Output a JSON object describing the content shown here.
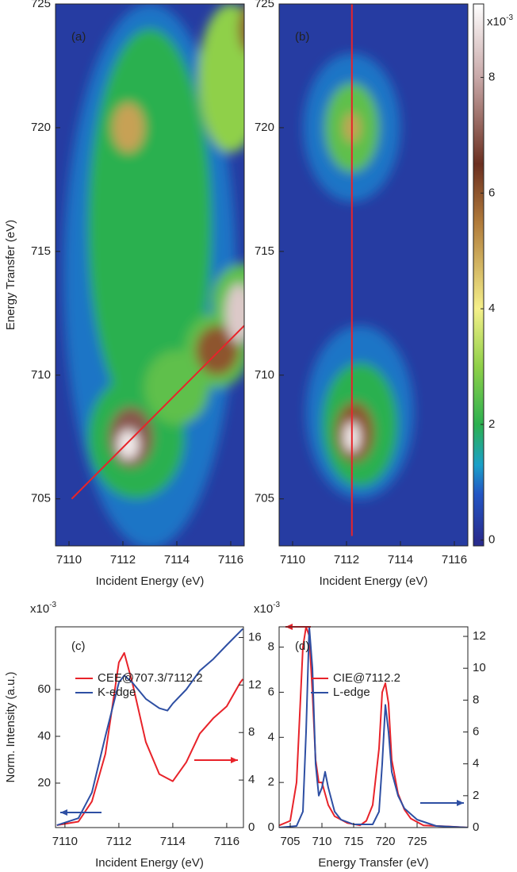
{
  "chart_data": [
    {
      "type": "heatmap",
      "panel": "(a)",
      "xlabel": "Incident Energy (eV)",
      "ylabel": "Energy Transfer (eV)",
      "xlim": [
        7109.5,
        7116.5
      ],
      "ylim": [
        703.1,
        725
      ],
      "xticks": [
        7110,
        7112,
        7114,
        7116
      ],
      "yticks": [
        705,
        710,
        715,
        720,
        725
      ],
      "background": 0.3,
      "features": [
        {
          "x": 7113,
          "y": 714,
          "rx": 3.2,
          "ry": 11,
          "value": 1
        },
        {
          "x": 7113,
          "y": 716,
          "rx": 2.3,
          "ry": 8,
          "value": 2
        },
        {
          "x": 7112.5,
          "y": 707.5,
          "rx": 1.8,
          "ry": 2.5,
          "value": 2
        },
        {
          "x": 7114,
          "y": 709.5,
          "rx": 1.2,
          "ry": 1.5,
          "value": 2.5
        },
        {
          "x": 7115.5,
          "y": 711,
          "rx": 1.2,
          "ry": 1.5,
          "value": 2.5
        },
        {
          "x": 7116.5,
          "y": 713,
          "rx": 1.2,
          "ry": 1.5,
          "value": 2.5
        },
        {
          "x": 7116,
          "y": 722,
          "rx": 1.2,
          "ry": 3,
          "value": 3
        },
        {
          "x": 7112.2,
          "y": 720,
          "rx": 0.6,
          "ry": 1,
          "value": 5
        },
        {
          "x": 7112.3,
          "y": 707.5,
          "rx": 0.8,
          "ry": 1.2,
          "value": 7
        },
        {
          "x": 7112.2,
          "y": 707.2,
          "rx": 0.4,
          "ry": 0.6,
          "value": 9
        },
        {
          "x": 7115.5,
          "y": 711,
          "rx": 0.8,
          "ry": 1,
          "value": 6
        },
        {
          "x": 7116.3,
          "y": 712.5,
          "rx": 0.5,
          "ry": 1.2,
          "value": 8.5
        },
        {
          "x": 7116.7,
          "y": 724,
          "rx": 0.4,
          "ry": 1,
          "value": 6
        }
      ],
      "lines": [
        {
          "x": [
            7110.1,
            7116.5
          ],
          "y": [
            705,
            712
          ],
          "color": "#e8232a"
        }
      ]
    },
    {
      "type": "heatmap",
      "panel": "(b)",
      "xlabel": "Incident Energy (eV)",
      "xlim": [
        7109.5,
        7116.5
      ],
      "ylim": [
        703.1,
        725
      ],
      "xticks": [
        7110,
        7112,
        7114,
        7116
      ],
      "yticks": [
        705,
        710,
        715,
        720,
        725
      ],
      "background": 0.3,
      "features": [
        {
          "x": 7112.2,
          "y": 720,
          "rx": 1.8,
          "ry": 3,
          "value": 1
        },
        {
          "x": 7112.2,
          "y": 720,
          "rx": 1,
          "ry": 1.8,
          "value": 2.5
        },
        {
          "x": 7112.2,
          "y": 720,
          "rx": 0.3,
          "ry": 0.6,
          "value": 5
        },
        {
          "x": 7112.5,
          "y": 708.5,
          "rx": 2,
          "ry": 3.5,
          "value": 1
        },
        {
          "x": 7112.5,
          "y": 708,
          "rx": 1.4,
          "ry": 2.5,
          "value": 2
        },
        {
          "x": 7112.3,
          "y": 707.7,
          "rx": 0.7,
          "ry": 1.2,
          "value": 6
        },
        {
          "x": 7112.2,
          "y": 707.5,
          "rx": 0.3,
          "ry": 0.6,
          "value": 9
        }
      ],
      "lines": [
        {
          "x": [
            7112.2,
            7112.2
          ],
          "y": [
            703.5,
            725
          ],
          "color": "#e8232a"
        }
      ]
    },
    {
      "type": "line",
      "panel": "(c)",
      "xlabel": "Incident Energy (eV)",
      "ylabel": "Norm. Intensity  (a.u.)",
      "ylabel_multiplier": "x10",
      "ylabel_exponent": "-3",
      "xlim": [
        7109.65,
        7116.62
      ],
      "ylim": [
        1,
        86.8
      ],
      "y2lim": [
        0,
        16.9
      ],
      "xticks": [
        7110,
        7112,
        7114,
        7116
      ],
      "yticks": [
        20,
        40,
        60
      ],
      "y2ticks": [
        0,
        4,
        8,
        12,
        16
      ],
      "series": [
        {
          "name": "CEE@707.3/7112.2",
          "color": "#e8232a",
          "axis": "y2",
          "x": [
            7109.7,
            7110.5,
            7111,
            7111.5,
            7112,
            7112.2,
            7112.5,
            7113,
            7113.5,
            7114,
            7114.5,
            7115,
            7115.5,
            7116,
            7116.5,
            7116.6
          ],
          "values": [
            0.2,
            0.5,
            2.2,
            6.2,
            13.9,
            14.7,
            12.2,
            7.2,
            4.5,
            3.9,
            5.5,
            7.9,
            9.2,
            10.2,
            12.2,
            12.5
          ]
        },
        {
          "name": "K-edge",
          "color": "#2e4fa3",
          "axis": "y",
          "x": [
            7109.7,
            7110.5,
            7111,
            7111.5,
            7112,
            7112.2,
            7112.5,
            7113,
            7113.5,
            7113.8,
            7114,
            7114.5,
            7115,
            7115.5,
            7116,
            7116.6
          ],
          "values": [
            2,
            5,
            16,
            40,
            63,
            66,
            63,
            56,
            52,
            51,
            54,
            60,
            68,
            73,
            79,
            86
          ]
        }
      ]
    },
    {
      "type": "line",
      "panel": "(d)",
      "xlabel": "Energy Transfer (eV)",
      "ylabel_multiplier": "x10",
      "ylabel_exponent": "-3",
      "xlim": [
        703.25,
        733
      ],
      "ylim": [
        0,
        8.9
      ],
      "y2lim": [
        0,
        12.6
      ],
      "xticks": [
        705,
        710,
        715,
        720,
        725
      ],
      "yticks": [
        0,
        2,
        4,
        6,
        8
      ],
      "y2ticks": [
        0,
        2,
        4,
        6,
        8,
        10,
        12
      ],
      "series": [
        {
          "name": "CIE@7112.2",
          "color": "#e8232a",
          "axis": "y",
          "x": [
            703.3,
            705,
            706,
            706.5,
            707,
            707.5,
            708,
            708.5,
            709,
            709.5,
            710,
            710.5,
            711,
            712,
            714,
            716,
            717,
            718,
            719,
            719.5,
            720,
            720.5,
            721,
            722,
            723,
            724,
            726,
            730,
            733
          ],
          "values": [
            0.1,
            0.3,
            2,
            5,
            8,
            8.9,
            8.5,
            6,
            3,
            2,
            2,
            1.5,
            1,
            0.5,
            0.2,
            0.1,
            0.3,
            1,
            3.5,
            6,
            6.4,
            5.5,
            3,
            1.5,
            0.8,
            0.4,
            0.1,
            0.05,
            0
          ]
        },
        {
          "name": "L-edge",
          "color": "#2e4fa3",
          "axis": "y2",
          "x": [
            703.3,
            706,
            707,
            707.5,
            708,
            708.5,
            709,
            709.5,
            710,
            710.5,
            711,
            712,
            713,
            715,
            718,
            719,
            719.5,
            720,
            720.5,
            721,
            722,
            723,
            725,
            728,
            733
          ],
          "values": [
            0,
            0.1,
            1,
            6,
            12.6,
            10,
            4,
            2,
            2.5,
            3.5,
            2.5,
            1,
            0.5,
            0.2,
            0.2,
            1,
            4,
            7.7,
            6,
            3.5,
            2,
            1.2,
            0.5,
            0.1,
            0
          ]
        }
      ]
    }
  ],
  "colorbar": {
    "multiplier": "x10",
    "exponent": "-3",
    "clim": [
      -0.1,
      9.27
    ],
    "ticks": [
      0,
      2,
      4,
      6,
      8
    ],
    "colormap": [
      {
        "value": 0,
        "color": "#282c8e"
      },
      {
        "value": 0.8,
        "color": "#2356c4"
      },
      {
        "value": 1.3,
        "color": "#1aa0c8"
      },
      {
        "value": 2,
        "color": "#2cb050"
      },
      {
        "value": 3,
        "color": "#8fd048"
      },
      {
        "value": 4,
        "color": "#f5f08a"
      },
      {
        "value": 5.5,
        "color": "#b07a3a"
      },
      {
        "value": 6.5,
        "color": "#6b2f20"
      },
      {
        "value": 8,
        "color": "#c8a8a8"
      },
      {
        "value": 9.3,
        "color": "#ffffff"
      }
    ]
  }
}
